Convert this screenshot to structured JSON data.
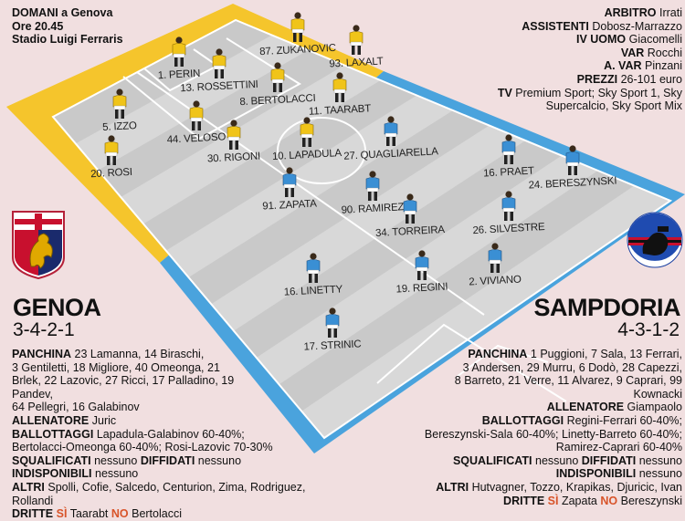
{
  "colors": {
    "genoa_band": "#f5c52c",
    "samp_band": "#4aa3dd",
    "pitch_light": "#dadada",
    "pitch_dark": "#c6c6c6",
    "genoa_shirt": "#f0c419",
    "samp_shirt": "#3a8fd4",
    "accent": "#d8542a"
  },
  "match": {
    "line1": "DOMANI a Genova",
    "line2": "Ore 20.45",
    "line3": "Stadio Luigi Ferraris"
  },
  "officials": [
    {
      "label": "ARBITRO",
      "value": "Irrati"
    },
    {
      "label": "ASSISTENTI",
      "value": "Dobosz-Marrazzo"
    },
    {
      "label": "IV UOMO",
      "value": "Giacomelli"
    },
    {
      "label": "VAR",
      "value": "Rocchi"
    },
    {
      "label": "A. VAR",
      "value": "Pinzani"
    },
    {
      "label": "PREZZI",
      "value": "26-101 euro"
    },
    {
      "label": "TV",
      "value": "Premium Sport; Sky Sport 1, Sky"
    },
    {
      "label": "",
      "value": "Supercalcio, Sky Sport Mix"
    }
  ],
  "genoa": {
    "name": "GENOA",
    "formation": "3-4-2-1",
    "crest_icon": "genoa-griffin-crest-icon",
    "players": [
      {
        "label": "1. PERIN",
        "shirt": "yellow"
      },
      {
        "label": "13. ROSSETTINI",
        "shirt": "yellow"
      },
      {
        "label": "87. ZUKANOVIC",
        "shirt": "yellow"
      },
      {
        "label": "93. LAXALT",
        "shirt": "yellow"
      },
      {
        "label": "8. BERTOLACCI",
        "shirt": "yellow"
      },
      {
        "label": "11. TAARABT",
        "shirt": "yellow"
      },
      {
        "label": "5. IZZO",
        "shirt": "yellow"
      },
      {
        "label": "44. VELOSO",
        "shirt": "yellow"
      },
      {
        "label": "30. RIGONI",
        "shirt": "yellow"
      },
      {
        "label": "10. LAPADULA",
        "shirt": "yellow"
      },
      {
        "label": "20. ROSI",
        "shirt": "yellow"
      }
    ],
    "lines": [
      {
        "label": "PANCHINA",
        "value": "23 Lamanna, 14 Biraschi,"
      },
      {
        "label": "",
        "value": "3 Gentiletti, 18 Migliore, 40 Omeonga, 21"
      },
      {
        "label": "",
        "value": "Brlek, 22 Lazovic, 27 Ricci, 17 Palladino, 19"
      },
      {
        "label": "",
        "value": "Pandev,"
      },
      {
        "label": "",
        "value": "64 Pellegri, 16 Galabinov"
      },
      {
        "label": "ALLENATORE",
        "value": "Juric"
      },
      {
        "label": "BALLOTTAGGI",
        "value": "Lapadula-Galabinov 60-40%;"
      },
      {
        "label": "",
        "value": "Bertolacci-Omeonga 60-40%; Rosi-Lazovic 70-30%"
      },
      {
        "label": "SQUALIFICATI",
        "value": "nessuno",
        "label2": "DIFFIDATI",
        "value2": "nessuno"
      },
      {
        "label": "INDISPONIBILI",
        "value": "nessuno"
      },
      {
        "label": "ALTRI",
        "value": "Spolli, Cofie, Salcedo, Centurion, Zima, Rodriguez, Rollandi"
      }
    ],
    "dritte": {
      "label": "DRITTE",
      "yes": "SÌ",
      "yes_value": "Taarabt",
      "no": "NO",
      "no_value": "Bertolacci"
    }
  },
  "sampdoria": {
    "name": "SAMPDORIA",
    "formation": "4-3-1-2",
    "crest_icon": "sampdoria-sailor-crest-icon",
    "players": [
      {
        "label": "27. QUAGLIARELLA",
        "shirt": "blue"
      },
      {
        "label": "91. ZAPATA",
        "shirt": "blue"
      },
      {
        "label": "16. PRAET",
        "shirt": "blue"
      },
      {
        "label": "24. BERESZYNSKI",
        "shirt": "blue"
      },
      {
        "label": "90. RAMIREZ",
        "shirt": "blue"
      },
      {
        "label": "34. TORREIRA",
        "shirt": "blue"
      },
      {
        "label": "26. SILVESTRE",
        "shirt": "blue"
      },
      {
        "label": "16. LINETTY",
        "shirt": "blue"
      },
      {
        "label": "19. REGINI",
        "shirt": "blue"
      },
      {
        "label": "2. VIVIANO",
        "shirt": "blue"
      },
      {
        "label": "17. STRINIC",
        "shirt": "blue"
      }
    ],
    "lines": [
      {
        "label": "PANCHINA",
        "value": "1 Puggioni, 7 Sala, 13 Ferrari,"
      },
      {
        "label": "",
        "value": "3 Andersen, 29 Murru, 6 Dodò, 28 Capezzi,"
      },
      {
        "label": "",
        "value": "8 Barreto, 21 Verre, 11 Alvarez, 9 Caprari, 99"
      },
      {
        "label": "",
        "value": "Kownacki"
      },
      {
        "label": "ALLENATORE",
        "value": "Giampaolo"
      },
      {
        "label": "BALLOTTAGGI",
        "value": "Regini-Ferrari 60-40%;"
      },
      {
        "label": "",
        "value": "Bereszynski-Sala 60-40%; Linetty-Barreto 60-40%;"
      },
      {
        "label": "",
        "value": "Ramirez-Caprari 60-40%"
      },
      {
        "label": "SQUALIFICATI",
        "value": "nessuno",
        "label2": "DIFFIDATI",
        "value2": "nessuno"
      },
      {
        "label": "INDISPONIBILI",
        "value": "nessuno"
      },
      {
        "label": "ALTRI",
        "value": "Hutvagner, Tozzo, Krapikas, Djuricic, Ivan"
      }
    ],
    "dritte": {
      "label": "DRITTE",
      "yes": "SÌ",
      "yes_value": "Zapata",
      "no": "NO",
      "no_value": "Bereszynski"
    }
  }
}
